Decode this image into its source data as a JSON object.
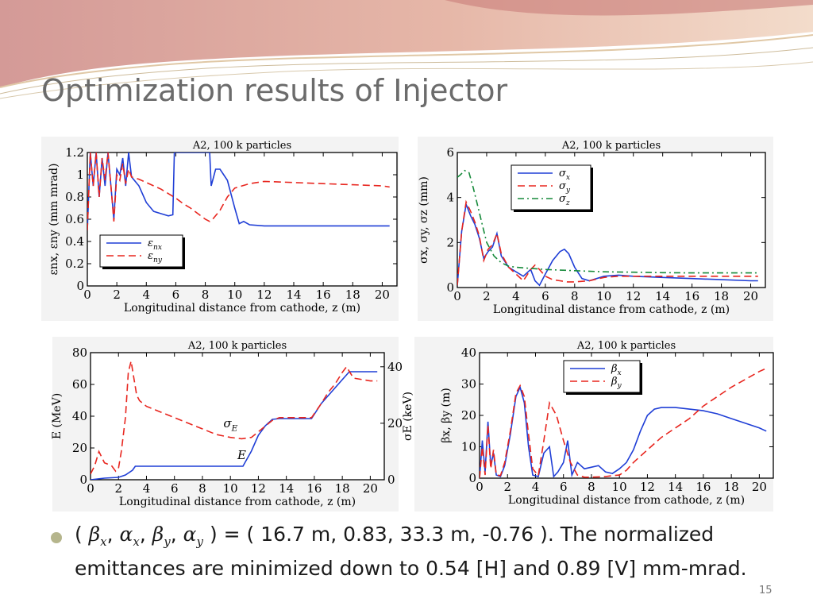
{
  "slide": {
    "title": "Optimization results of Injector",
    "page_number": "15",
    "bullet": {
      "open": "( ",
      "beta": "β",
      "sub_x": "x",
      "comma": ", ",
      "alpha": "α",
      "sub_y": "y",
      "values": " ) =  ( 16.7 m, 0.83, 33.3 m, -0.76 ). The normalized emittances are minimized down to 0.54 [H] and 0.89 [V]  mm-mrad."
    },
    "colors": {
      "blue": "#1f3ed6",
      "red": "#e8261f",
      "green": "#168a3a",
      "title": "#6b6b6b",
      "bullet": "#b5b58c"
    }
  },
  "chart_data": [
    {
      "type": "line",
      "title": "A2, 100 k particles",
      "xlabel": "Longitudinal distance from cathode, z (m)",
      "ylabel": "εnx, εny (mm mrad)",
      "xlim": [
        0,
        21
      ],
      "ylim": [
        0,
        1.2
      ],
      "xticks": [
        0,
        2,
        4,
        6,
        8,
        10,
        12,
        14,
        16,
        18,
        20
      ],
      "yticks": [
        0,
        0.2,
        0.4,
        0.6,
        0.8,
        1,
        1.2
      ],
      "ytick_labels": [
        "0",
        "0.2",
        "0.4",
        "0.6",
        "0.8",
        "1",
        "1.2"
      ],
      "legend": {
        "position": "bottom-left",
        "entries": [
          {
            "name": "ε",
            "sub": "nx"
          },
          {
            "name": "ε",
            "sub": "ny"
          }
        ]
      },
      "series": [
        {
          "name": "εnx",
          "color": "blue",
          "dash": "solid",
          "x": [
            0,
            0.2,
            0.4,
            0.6,
            0.8,
            1,
            1.2,
            1.4,
            1.6,
            1.8,
            2,
            2.2,
            2.4,
            2.6,
            2.8,
            3,
            3.5,
            4,
            4.5,
            5,
            5.5,
            5.8,
            5.9,
            6.0,
            8.3,
            8.4,
            8.5,
            8.7,
            9,
            9.5,
            10,
            10.3,
            10.6,
            11,
            12,
            14,
            16,
            18,
            20,
            20.5
          ],
          "y": [
            0.5,
            1.2,
            0.9,
            1.2,
            0.8,
            1.15,
            0.9,
            1.2,
            0.9,
            0.6,
            1.05,
            1.0,
            1.15,
            0.9,
            1.2,
            0.98,
            0.9,
            0.75,
            0.67,
            0.65,
            0.63,
            0.64,
            1.2,
            1.2,
            1.2,
            0.9,
            0.95,
            1.05,
            1.05,
            0.95,
            0.7,
            0.56,
            0.58,
            0.55,
            0.54,
            0.54,
            0.54,
            0.54,
            0.54,
            0.54
          ]
        },
        {
          "name": "εny",
          "color": "red",
          "dash": "dash",
          "x": [
            0,
            0.2,
            0.4,
            0.6,
            0.8,
            1,
            1.2,
            1.4,
            1.6,
            1.8,
            2,
            2.2,
            2.4,
            2.6,
            2.8,
            3,
            3.5,
            4,
            4.5,
            5,
            5.5,
            6,
            6.5,
            7,
            7.5,
            8,
            8.3,
            8.5,
            9,
            9.5,
            10,
            10.5,
            11,
            12,
            14,
            16,
            18,
            20,
            20.5
          ],
          "y": [
            0.5,
            1.2,
            0.9,
            1.2,
            0.8,
            1.15,
            0.95,
            1.2,
            0.9,
            0.58,
            1.0,
            0.95,
            1.1,
            0.92,
            1.05,
            0.98,
            0.96,
            0.93,
            0.9,
            0.87,
            0.83,
            0.79,
            0.74,
            0.7,
            0.65,
            0.6,
            0.58,
            0.6,
            0.68,
            0.8,
            0.88,
            0.9,
            0.92,
            0.94,
            0.93,
            0.92,
            0.91,
            0.9,
            0.89
          ]
        }
      ]
    },
    {
      "type": "line",
      "title": "A2, 100 k particles",
      "xlabel": "Longitudinal distance from cathode, z (m)",
      "ylabel": "σx, σy, σz (mm)",
      "xlim": [
        0,
        21
      ],
      "ylim": [
        0,
        6
      ],
      "xticks": [
        0,
        2,
        4,
        6,
        8,
        10,
        12,
        14,
        16,
        18,
        20
      ],
      "yticks": [
        0,
        2,
        4,
        6
      ],
      "ytick_labels": [
        "0",
        "2",
        "4",
        "6"
      ],
      "legend": {
        "position": "top-right",
        "entries": [
          {
            "name": "σ",
            "sub": "x"
          },
          {
            "name": "σ",
            "sub": "y"
          },
          {
            "name": "σ",
            "sub": "z"
          }
        ]
      },
      "series": [
        {
          "name": "σx",
          "color": "blue",
          "dash": "solid",
          "x": [
            0,
            0.3,
            0.6,
            0.9,
            1.2,
            1.5,
            1.8,
            2.1,
            2.4,
            2.7,
            3,
            3.5,
            4,
            4.5,
            5,
            5.3,
            5.6,
            6,
            6.5,
            7,
            7.3,
            7.6,
            8,
            8.5,
            9,
            9.5,
            10,
            11,
            12,
            14,
            16,
            18,
            20,
            20.5
          ],
          "y": [
            0.1,
            2.5,
            3.7,
            3.2,
            2.8,
            2.2,
            1.3,
            1.6,
            1.8,
            2.4,
            1.4,
            0.9,
            0.7,
            0.5,
            0.8,
            0.3,
            0.1,
            0.6,
            1.2,
            1.6,
            1.7,
            1.5,
            0.9,
            0.4,
            0.3,
            0.4,
            0.5,
            0.55,
            0.5,
            0.45,
            0.4,
            0.35,
            0.3,
            0.3
          ]
        },
        {
          "name": "σy",
          "color": "red",
          "dash": "dash",
          "x": [
            0,
            0.3,
            0.6,
            0.9,
            1.2,
            1.5,
            1.8,
            2.1,
            2.4,
            2.7,
            3,
            3.5,
            4,
            4.5,
            5,
            5.3,
            5.6,
            6,
            6.5,
            7,
            7.5,
            8,
            9,
            10,
            11,
            12,
            14,
            16,
            18,
            20,
            20.5
          ],
          "y": [
            0.1,
            2.5,
            3.8,
            3.4,
            2.9,
            2.3,
            1.2,
            1.7,
            1.9,
            2.4,
            1.5,
            0.9,
            0.6,
            0.3,
            0.8,
            1.0,
            0.8,
            0.5,
            0.35,
            0.3,
            0.25,
            0.25,
            0.3,
            0.45,
            0.5,
            0.5,
            0.5,
            0.5,
            0.5,
            0.5,
            0.5
          ]
        },
        {
          "name": "σz",
          "color": "green",
          "dash": "dashdot",
          "x": [
            0,
            0.2,
            0.5,
            0.8,
            1.1,
            1.4,
            1.7,
            2,
            2.5,
            3,
            3.5,
            4,
            5,
            6,
            8,
            10,
            12,
            14,
            16,
            18,
            20,
            20.5
          ],
          "y": [
            4.9,
            5.0,
            5.2,
            5.1,
            4.4,
            3.6,
            2.8,
            2.0,
            1.4,
            1.1,
            0.95,
            0.9,
            0.85,
            0.8,
            0.75,
            0.7,
            0.68,
            0.66,
            0.65,
            0.65,
            0.65,
            0.65
          ]
        }
      ]
    },
    {
      "type": "line",
      "title": "A2, 100 k particles",
      "xlabel": "Longitudinal distance from cathode, z (m)",
      "ylabel": "E (MeV)",
      "y2label": "σE (keV)",
      "xlim": [
        0,
        21
      ],
      "ylim": [
        0,
        80
      ],
      "y2lim": [
        0,
        45
      ],
      "xticks": [
        0,
        2,
        4,
        6,
        8,
        10,
        12,
        14,
        16,
        18,
        20
      ],
      "yticks": [
        0,
        20,
        40,
        60,
        80
      ],
      "ytick_labels": [
        "0",
        "20",
        "40",
        "60",
        "80"
      ],
      "y2ticks": [
        0,
        20,
        40
      ],
      "y2tick_labels": [
        "0",
        "20",
        "40"
      ],
      "annotations": [
        {
          "name": "σ",
          "sub": "E",
          "x": 9.5,
          "y": 33
        },
        {
          "name": "E",
          "sub": "",
          "x": 10.5,
          "y": 13
        }
      ],
      "series": [
        {
          "name": "E",
          "color": "blue",
          "dash": "solid",
          "axis": "left",
          "x": [
            0,
            0.5,
            1,
            2,
            2.5,
            3,
            3.2,
            4,
            6,
            8,
            10,
            10.9,
            11.5,
            12,
            12.5,
            13,
            13.5,
            14,
            15,
            15.5,
            15.8,
            16.5,
            17,
            17.5,
            18,
            18.5,
            19,
            20,
            20.5
          ],
          "y": [
            0,
            0.5,
            1,
            1.5,
            3,
            6,
            8.5,
            8.5,
            8.5,
            8.5,
            8.5,
            8.5,
            18,
            28,
            34,
            38,
            38.5,
            38.5,
            38.5,
            38.5,
            38.5,
            48,
            53,
            58,
            63,
            68,
            68,
            68,
            68
          ]
        },
        {
          "name": "σE",
          "color": "red",
          "dash": "dash",
          "axis": "right",
          "x": [
            0,
            0.3,
            0.6,
            0.8,
            1,
            1.5,
            1.8,
            2,
            2.2,
            2.5,
            2.7,
            2.9,
            3.1,
            3.3,
            3.5,
            4,
            5,
            6,
            7,
            8,
            9,
            10,
            10.8,
            11.5,
            12,
            12.5,
            13,
            13.5,
            14,
            15,
            15.8,
            16.5,
            17,
            17.5,
            18,
            18.3,
            18.8,
            20,
            20.5
          ],
          "y": [
            2,
            5,
            10,
            8,
            6,
            5,
            3,
            4,
            10,
            22,
            38,
            42,
            36,
            30,
            28,
            26,
            24,
            22,
            20,
            18,
            16,
            15,
            14.5,
            15,
            17,
            19,
            21,
            22,
            22,
            22,
            22,
            27,
            31,
            34,
            38,
            40,
            36,
            35,
            35
          ]
        }
      ]
    },
    {
      "type": "line",
      "title": "A2, 100 k particles",
      "xlabel": "Longitudinal distance from cathode, z (m)",
      "ylabel": "βx, βy (m)",
      "xlim": [
        0,
        21
      ],
      "ylim": [
        0,
        40
      ],
      "xticks": [
        0,
        2,
        4,
        6,
        8,
        10,
        12,
        14,
        16,
        18,
        20
      ],
      "yticks": [
        0,
        10,
        20,
        30,
        40
      ],
      "ytick_labels": [
        "0",
        "10",
        "20",
        "30",
        "40"
      ],
      "legend": {
        "position": "top-center",
        "entries": [
          {
            "name": "β",
            "sub": "x"
          },
          {
            "name": "β",
            "sub": "y"
          }
        ]
      },
      "series": [
        {
          "name": "βx",
          "color": "blue",
          "dash": "solid",
          "x": [
            0,
            0.2,
            0.4,
            0.6,
            0.8,
            1,
            1.2,
            1.5,
            1.8,
            2.2,
            2.6,
            2.9,
            3.2,
            3.5,
            3.8,
            4.2,
            4.6,
            5,
            5.3,
            5.6,
            6,
            6.3,
            6.6,
            7,
            7.5,
            8,
            8.5,
            9,
            9.5,
            10,
            10.5,
            11,
            11.5,
            12,
            12.5,
            13,
            14,
            15,
            16,
            17,
            18,
            19,
            20,
            20.5
          ],
          "y": [
            0,
            12,
            2,
            18,
            4,
            8,
            1,
            0.5,
            4,
            14,
            26,
            29,
            24,
            10,
            1,
            0.5,
            8,
            10,
            0.5,
            2,
            5,
            12,
            1,
            5,
            3,
            3.5,
            4,
            2,
            1.5,
            3,
            5,
            9,
            15,
            20,
            22,
            22.5,
            22.5,
            22,
            21.5,
            20.5,
            19,
            17.5,
            16,
            15
          ]
        },
        {
          "name": "βy",
          "color": "red",
          "dash": "dash",
          "x": [
            0,
            0.2,
            0.4,
            0.6,
            0.8,
            1,
            1.2,
            1.5,
            1.8,
            2.2,
            2.6,
            2.9,
            3.2,
            3.5,
            3.8,
            4.2,
            4.6,
            5,
            5.5,
            6,
            6.5,
            7,
            7.5,
            8,
            8.5,
            9,
            9.5,
            10,
            10.5,
            11,
            12,
            13,
            14,
            15,
            16,
            17,
            18,
            19,
            20,
            20.5
          ],
          "y": [
            0,
            10,
            1,
            17,
            3,
            9,
            1,
            0.8,
            5,
            15,
            27,
            29.5,
            26,
            14,
            3,
            0.8,
            12,
            24,
            20,
            12,
            5,
            1,
            0.3,
            0.3,
            0.4,
            0.5,
            0.8,
            1,
            2.5,
            5,
            9,
            13,
            16,
            19,
            23,
            26,
            29,
            31.5,
            34,
            35
          ]
        }
      ]
    }
  ]
}
